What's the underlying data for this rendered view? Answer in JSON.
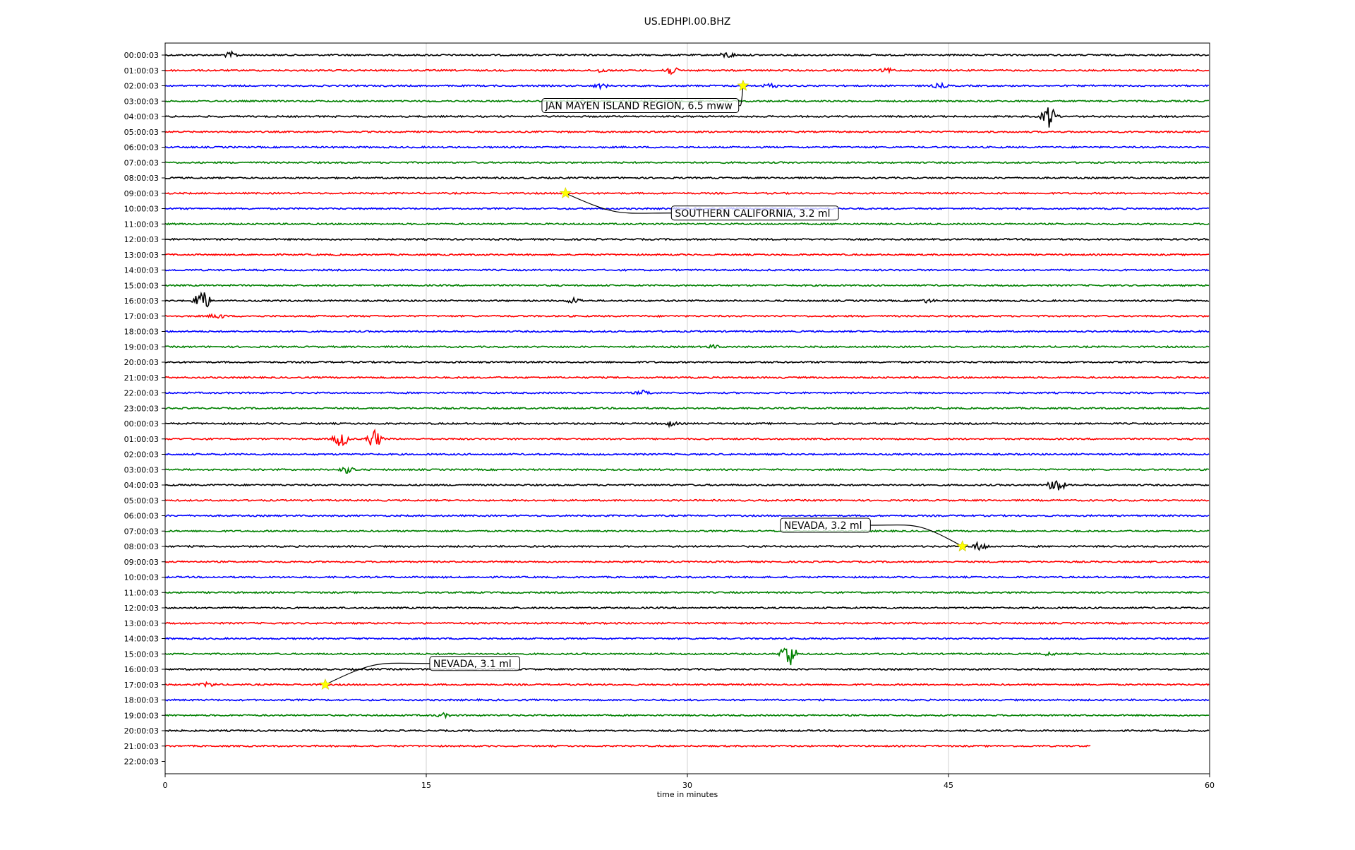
{
  "chart_data": {
    "type": "line",
    "title": "US.EDHPI.00.BHZ",
    "xlabel": "time in minutes",
    "ylabel": "",
    "xlim": [
      0,
      60
    ],
    "x_ticks": [
      0,
      15,
      30,
      45,
      60
    ],
    "grid": "vertical",
    "trace_colors": [
      "#000000",
      "#ff0000",
      "#0000ff",
      "#008000"
    ],
    "row_labels": [
      "00:00:03",
      "01:00:03",
      "02:00:03",
      "03:00:03",
      "04:00:03",
      "05:00:03",
      "06:00:03",
      "07:00:03",
      "08:00:03",
      "09:00:03",
      "10:00:03",
      "11:00:03",
      "12:00:03",
      "13:00:03",
      "14:00:03",
      "15:00:03",
      "16:00:03",
      "17:00:03",
      "18:00:03",
      "19:00:03",
      "20:00:03",
      "21:00:03",
      "22:00:03",
      "23:00:03",
      "00:00:03",
      "01:00:03",
      "02:00:03",
      "03:00:03",
      "04:00:03",
      "05:00:03",
      "06:00:03",
      "07:00:03",
      "08:00:03",
      "09:00:03",
      "10:00:03",
      "11:00:03",
      "12:00:03",
      "13:00:03",
      "14:00:03",
      "15:00:03",
      "16:00:03",
      "17:00:03",
      "18:00:03",
      "19:00:03",
      "20:00:03",
      "21:00:03",
      "22:00:03"
    ],
    "last_trace_end_minute": 53.2,
    "bursts": [
      {
        "row": 0,
        "t": 3.8,
        "amp": 2.0
      },
      {
        "row": 0,
        "t": 32.3,
        "amp": 2.0
      },
      {
        "row": 1,
        "t": 29.0,
        "amp": 3.0
      },
      {
        "row": 1,
        "t": 25.0,
        "amp": 1.2
      },
      {
        "row": 1,
        "t": 41.5,
        "amp": 1.2
      },
      {
        "row": 2,
        "t": 25.0,
        "amp": 1.5
      },
      {
        "row": 2,
        "t": 34.8,
        "amp": 1.5
      },
      {
        "row": 2,
        "t": 44.5,
        "amp": 1.5
      },
      {
        "row": 4,
        "t": 50.8,
        "amp": 8.0
      },
      {
        "row": 16,
        "t": 2.1,
        "amp": 9.0
      },
      {
        "row": 16,
        "t": 23.5,
        "amp": 1.8
      },
      {
        "row": 16,
        "t": 43.8,
        "amp": 1.2
      },
      {
        "row": 17,
        "t": 3.0,
        "amp": 1.8
      },
      {
        "row": 19,
        "t": 31.5,
        "amp": 1.0
      },
      {
        "row": 22,
        "t": 27.5,
        "amp": 1.5
      },
      {
        "row": 24,
        "t": 29.0,
        "amp": 1.5
      },
      {
        "row": 25,
        "t": 10.1,
        "amp": 6.0
      },
      {
        "row": 25,
        "t": 12.0,
        "amp": 7.0
      },
      {
        "row": 27,
        "t": 10.5,
        "amp": 2.5
      },
      {
        "row": 28,
        "t": 51.2,
        "amp": 6.0
      },
      {
        "row": 32,
        "t": 46.8,
        "amp": 3.0
      },
      {
        "row": 39,
        "t": 35.8,
        "amp": 10.0
      },
      {
        "row": 39,
        "t": 50.8,
        "amp": 1.0
      },
      {
        "row": 41,
        "t": 2.5,
        "amp": 1.5
      },
      {
        "row": 43,
        "t": 16.0,
        "amp": 1.2
      }
    ],
    "events": [
      {
        "label": "JAN MAYEN ISLAND REGION, 6.5 mww",
        "row": 2,
        "minute": 33.2
      },
      {
        "label": "SOUTHERN CALIFORNIA, 3.2 ml",
        "row": 9,
        "minute": 23.0
      },
      {
        "label": "NEVADA, 3.2 ml",
        "row": 32,
        "minute": 45.8
      },
      {
        "label": "NEVADA, 3.1 ml",
        "row": 41,
        "minute": 9.2
      }
    ],
    "marker_color": "#ffff00"
  }
}
